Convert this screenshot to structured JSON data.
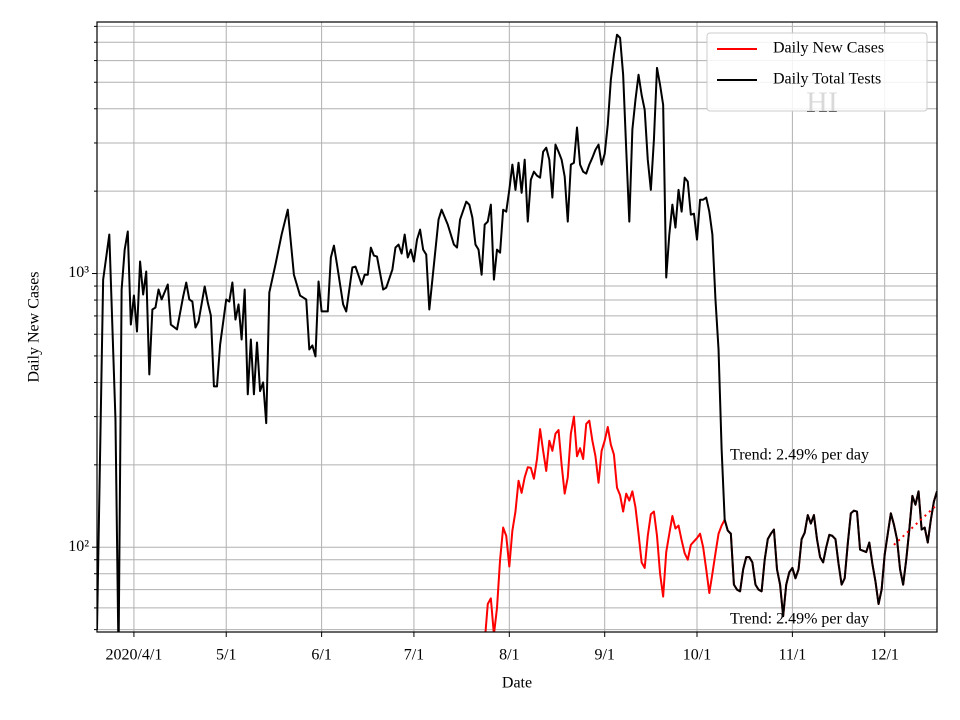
{
  "chart_data": {
    "type": "line",
    "ylabel": "Daily New Cases",
    "xlabel": "Date",
    "annotation": "HI",
    "trend_labels": [
      "Trend: 2.49% per day",
      "Trend: 2.49% per day"
    ],
    "log_y": true,
    "grid": true,
    "legend": "upper right",
    "xlim": [
      "2020-03-20",
      "2020-12-18"
    ],
    "xticks": [
      {
        "value": "2020-04-01",
        "label": "2020/4/1"
      },
      {
        "value": "2020-05-01",
        "label": "5/1"
      },
      {
        "value": "2020-06-01",
        "label": "6/1"
      },
      {
        "value": "2020-07-01",
        "label": "7/1"
      },
      {
        "value": "2020-08-01",
        "label": "8/1"
      },
      {
        "value": "2020-09-01",
        "label": "9/1"
      },
      {
        "value": "2020-10-01",
        "label": "10/1"
      },
      {
        "value": "2020-11-01",
        "label": "11/1"
      },
      {
        "value": "2020-12-01",
        "label": "12/1"
      }
    ],
    "ylim": [
      49,
      8300
    ],
    "yticks": [
      {
        "value": 100,
        "label": "10²"
      },
      {
        "value": 1000,
        "label": "10³"
      }
    ],
    "yminorticks": [
      50,
      60,
      70,
      80,
      90,
      200,
      300,
      400,
      500,
      600,
      700,
      800,
      900,
      2000,
      3000,
      4000,
      5000,
      6000,
      7000,
      8000
    ],
    "series": [
      {
        "name": "Daily New Cases",
        "color": "#ff0000",
        "x": [
          "2020-07-24",
          "2020-07-25",
          "2020-07-26",
          "2020-07-27",
          "2020-07-28",
          "2020-07-29",
          "2020-07-30",
          "2020-07-31",
          "2020-08-01",
          "2020-08-02",
          "2020-08-03",
          "2020-08-04",
          "2020-08-05",
          "2020-08-06",
          "2020-08-07",
          "2020-08-08",
          "2020-08-09",
          "2020-08-10",
          "2020-08-11",
          "2020-08-12",
          "2020-08-13",
          "2020-08-14",
          "2020-08-15",
          "2020-08-16",
          "2020-08-17",
          "2020-08-18",
          "2020-08-19",
          "2020-08-20",
          "2020-08-21",
          "2020-08-22",
          "2020-08-23",
          "2020-08-24",
          "2020-08-25",
          "2020-08-26",
          "2020-08-27",
          "2020-08-28",
          "2020-08-29",
          "2020-08-30",
          "2020-08-31",
          "2020-09-01",
          "2020-09-02",
          "2020-09-03",
          "2020-09-04",
          "2020-09-05",
          "2020-09-06",
          "2020-09-07",
          "2020-09-08",
          "2020-09-09",
          "2020-09-10",
          "2020-09-11",
          "2020-09-12",
          "2020-09-13",
          "2020-09-14",
          "2020-09-15",
          "2020-09-16",
          "2020-09-17",
          "2020-09-18",
          "2020-09-19",
          "2020-09-20",
          "2020-09-21",
          "2020-09-22",
          "2020-09-23",
          "2020-09-24",
          "2020-09-25",
          "2020-09-26",
          "2020-09-27",
          "2020-09-28",
          "2020-09-29",
          "2020-09-30",
          "2020-10-01",
          "2020-10-02",
          "2020-10-03",
          "2020-10-04",
          "2020-10-05",
          "2020-10-06",
          "2020-10-07",
          "2020-10-08",
          "2020-10-09",
          "2020-10-10",
          "2020-10-11",
          "2020-10-12",
          "2020-10-13",
          "2020-10-14",
          "2020-10-15",
          "2020-10-16",
          "2020-10-17",
          "2020-10-18",
          "2020-10-19",
          "2020-10-20",
          "2020-10-21",
          "2020-10-22",
          "2020-10-23",
          "2020-10-24",
          "2020-10-25",
          "2020-10-26",
          "2020-10-27",
          "2020-10-28",
          "2020-10-29",
          "2020-10-30",
          "2020-10-31",
          "2020-11-01",
          "2020-11-02",
          "2020-11-03",
          "2020-11-04",
          "2020-11-05",
          "2020-11-06",
          "2020-11-07",
          "2020-11-08",
          "2020-11-09",
          "2020-11-10",
          "2020-11-11",
          "2020-11-12",
          "2020-11-13",
          "2020-11-14",
          "2020-11-15",
          "2020-11-16",
          "2020-11-17",
          "2020-11-18",
          "2020-11-19",
          "2020-11-20",
          "2020-11-21",
          "2020-11-22",
          "2020-11-23",
          "2020-11-24",
          "2020-11-25",
          "2020-11-26",
          "2020-11-27",
          "2020-11-28",
          "2020-11-29",
          "2020-11-30",
          "2020-12-01",
          "2020-12-02",
          "2020-12-03",
          "2020-12-04",
          "2020-12-05",
          "2020-12-06",
          "2020-12-07",
          "2020-12-08",
          "2020-12-09",
          "2020-12-10",
          "2020-12-11",
          "2020-12-12",
          "2020-12-13",
          "2020-12-14",
          "2020-12-15",
          "2020-12-16",
          "2020-12-17",
          "2020-12-18"
        ],
        "values": [
          45,
          62,
          65,
          48,
          60,
          90,
          118,
          110,
          85,
          115,
          135,
          175,
          158,
          180,
          196,
          195,
          178,
          210,
          270,
          225,
          190,
          245,
          225,
          260,
          268,
          200,
          157,
          180,
          260,
          300,
          215,
          230,
          210,
          282,
          290,
          245,
          215,
          172,
          225,
          245,
          275,
          237,
          218,
          165,
          155,
          135,
          157,
          148,
          160,
          140,
          112,
          88,
          84,
          110,
          132,
          135,
          110,
          80,
          66,
          96,
          112,
          130,
          117,
          120,
          106,
          95,
          90,
          102,
          105,
          108,
          112,
          100,
          83,
          68,
          80,
          95,
          112,
          120,
          126,
          115,
          112,
          73,
          70,
          69,
          83,
          92,
          92,
          88,
          73,
          70,
          69,
          90,
          107,
          112,
          116,
          83,
          73,
          56,
          73,
          81,
          84,
          77,
          83,
          107,
          113,
          131,
          122,
          131,
          107,
          92,
          88,
          100,
          111,
          110,
          107,
          87,
          73,
          77,
          103,
          133,
          136,
          135,
          98,
          97,
          96,
          104,
          87,
          75,
          62,
          70,
          94,
          112,
          133,
          121,
          107,
          83,
          73,
          90,
          116,
          154,
          143,
          160,
          116,
          118,
          104,
          126,
          147,
          160
        ]
      },
      {
        "name": "Daily Total Tests",
        "color": "#000000",
        "x": [
          "2020-03-20",
          "2020-03-22",
          "2020-03-24",
          "2020-03-26",
          "2020-03-27",
          "2020-03-28",
          "2020-03-29",
          "2020-03-30",
          "2020-03-31",
          "2020-04-01",
          "2020-04-02",
          "2020-04-03",
          "2020-04-04",
          "2020-04-05",
          "2020-04-06",
          "2020-04-07",
          "2020-04-08",
          "2020-04-09",
          "2020-04-10",
          "2020-04-12",
          "2020-04-13",
          "2020-04-15",
          "2020-04-17",
          "2020-04-18",
          "2020-04-19",
          "2020-04-20",
          "2020-04-21",
          "2020-04-22",
          "2020-04-24",
          "2020-04-25",
          "2020-04-26",
          "2020-04-27",
          "2020-04-28",
          "2020-04-29",
          "2020-05-01",
          "2020-05-02",
          "2020-05-03",
          "2020-05-04",
          "2020-05-05",
          "2020-05-06",
          "2020-05-07",
          "2020-05-08",
          "2020-05-09",
          "2020-05-10",
          "2020-05-11",
          "2020-05-12",
          "2020-05-13",
          "2020-05-14",
          "2020-05-15",
          "2020-05-17",
          "2020-05-19",
          "2020-05-21",
          "2020-05-23",
          "2020-05-25",
          "2020-05-27",
          "2020-05-28",
          "2020-05-29",
          "2020-05-30",
          "2020-05-31",
          "2020-06-01",
          "2020-06-03",
          "2020-06-04",
          "2020-06-05",
          "2020-06-06",
          "2020-06-08",
          "2020-06-09",
          "2020-06-11",
          "2020-06-12",
          "2020-06-14",
          "2020-06-15",
          "2020-06-16",
          "2020-06-17",
          "2020-06-18",
          "2020-06-19",
          "2020-06-21",
          "2020-06-22",
          "2020-06-24",
          "2020-06-25",
          "2020-06-26",
          "2020-06-27",
          "2020-06-28",
          "2020-06-29",
          "2020-06-30",
          "2020-07-01",
          "2020-07-02",
          "2020-07-03",
          "2020-07-04",
          "2020-07-05",
          "2020-07-06",
          "2020-07-07",
          "2020-07-09",
          "2020-07-10",
          "2020-07-12",
          "2020-07-14",
          "2020-07-15",
          "2020-07-16",
          "2020-07-18",
          "2020-07-19",
          "2020-07-20",
          "2020-07-21",
          "2020-07-22",
          "2020-07-23",
          "2020-07-24",
          "2020-07-25",
          "2020-07-26",
          "2020-07-27",
          "2020-07-28",
          "2020-07-29",
          "2020-07-30",
          "2020-07-31",
          "2020-08-01",
          "2020-08-02",
          "2020-08-03",
          "2020-08-04",
          "2020-08-05",
          "2020-08-06",
          "2020-08-07",
          "2020-08-08",
          "2020-08-09",
          "2020-08-10",
          "2020-08-11",
          "2020-08-12",
          "2020-08-13",
          "2020-08-14",
          "2020-08-15",
          "2020-08-16",
          "2020-08-17",
          "2020-08-18",
          "2020-08-19",
          "2020-08-20",
          "2020-08-21",
          "2020-08-22",
          "2020-08-23",
          "2020-08-24",
          "2020-08-25",
          "2020-08-26",
          "2020-08-27",
          "2020-08-28",
          "2020-08-29",
          "2020-08-30",
          "2020-08-31",
          "2020-09-01",
          "2020-09-02",
          "2020-09-03",
          "2020-09-04",
          "2020-09-05",
          "2020-09-06",
          "2020-09-07",
          "2020-09-08",
          "2020-09-09",
          "2020-09-10",
          "2020-09-11",
          "2020-09-12",
          "2020-09-13",
          "2020-09-14",
          "2020-09-15",
          "2020-09-16",
          "2020-09-17",
          "2020-09-18",
          "2020-09-19",
          "2020-09-20",
          "2020-09-21",
          "2020-09-22",
          "2020-09-23",
          "2020-09-24",
          "2020-09-25",
          "2020-09-26",
          "2020-09-27",
          "2020-09-28",
          "2020-09-29",
          "2020-09-30",
          "2020-10-01",
          "2020-10-02",
          "2020-10-03",
          "2020-10-04",
          "2020-10-05",
          "2020-10-06",
          "2020-10-07",
          "2020-10-08",
          "2020-10-09",
          "2020-10-10",
          "2020-10-11",
          "2020-10-12",
          "2020-10-13",
          "2020-10-14",
          "2020-10-15",
          "2020-10-16",
          "2020-10-17",
          "2020-10-18",
          "2020-10-19",
          "2020-10-20",
          "2020-10-21",
          "2020-10-22",
          "2020-10-23",
          "2020-10-24",
          "2020-10-25",
          "2020-10-26",
          "2020-10-27",
          "2020-10-28",
          "2020-10-29",
          "2020-10-30",
          "2020-10-31",
          "2020-11-01",
          "2020-11-02",
          "2020-11-03",
          "2020-11-04",
          "2020-11-05",
          "2020-11-06",
          "2020-11-07",
          "2020-11-08",
          "2020-11-09",
          "2020-11-10",
          "2020-11-11",
          "2020-11-12",
          "2020-11-13",
          "2020-11-14",
          "2020-11-15",
          "2020-11-16",
          "2020-11-17",
          "2020-11-18",
          "2020-11-19",
          "2020-11-20",
          "2020-11-21",
          "2020-11-22",
          "2020-11-23",
          "2020-11-24",
          "2020-11-25",
          "2020-11-26",
          "2020-11-27",
          "2020-11-28",
          "2020-11-29",
          "2020-11-30",
          "2020-12-01",
          "2020-12-02",
          "2020-12-03",
          "2020-12-04",
          "2020-12-05",
          "2020-12-06",
          "2020-12-07",
          "2020-12-08",
          "2020-12-09",
          "2020-12-10",
          "2020-12-11",
          "2020-12-12",
          "2020-12-13",
          "2020-12-14",
          "2020-12-15",
          "2020-12-16",
          "2020-12-17",
          "2020-12-18"
        ],
        "values": [
          50,
          950,
          1388,
          293,
          40,
          874,
          1223,
          1424,
          651,
          831,
          614,
          1106,
          838,
          1017,
          428,
          739,
          751,
          874,
          804,
          912,
          651,
          625,
          824,
          927,
          804,
          790,
          635,
          668,
          897,
          784,
          703,
          387,
          387,
          548,
          804,
          790,
          927,
          679,
          771,
          574,
          874,
          362,
          574,
          362,
          560,
          372,
          400,
          284,
          852,
          1079,
          1388,
          1711,
          990,
          831,
          804,
          528,
          546,
          498,
          935,
          727,
          727,
          1144,
          1265,
          1079,
          771,
          727,
          1052,
          1060,
          912,
          990,
          990,
          1244,
          1163,
          1153,
          874,
          888,
          1034,
          1244,
          1276,
          1183,
          1388,
          1144,
          1223,
          1106,
          1330,
          1447,
          1223,
          1173,
          739,
          950,
          1575,
          1711,
          1509,
          1276,
          1244,
          1575,
          1831,
          1785,
          1601,
          1276,
          1223,
          990,
          1509,
          1548,
          1785,
          950,
          1223,
          1192,
          1711,
          1683,
          2022,
          2500,
          2022,
          2540,
          1972,
          2606,
          1548,
          2201,
          2356,
          2279,
          2240,
          2786,
          2883,
          2606,
          1895,
          2958,
          2786,
          2606,
          2260,
          1548,
          2500,
          2540,
          3415,
          2500,
          2356,
          2318,
          2500,
          2650,
          2834,
          2958,
          2500,
          2736,
          3500,
          5108,
          6300,
          7459,
          7262,
          5324,
          2834,
          1548,
          3360,
          4315,
          5324,
          4496,
          3965,
          2606,
          2022,
          3085,
          5643,
          4890,
          4134,
          967,
          1388,
          1785,
          1472,
          2022,
          1683,
          2240,
          2166,
          1641,
          1655,
          1330,
          1861,
          1861,
          1895,
          1683,
          1388,
          804,
          528,
          228,
          126,
          115,
          112,
          73,
          70,
          69,
          83,
          92,
          92,
          88,
          73,
          70,
          69,
          90,
          107,
          112,
          116,
          83,
          73,
          56,
          73,
          81,
          84,
          77,
          83,
          107,
          113,
          131,
          122,
          131,
          107,
          92,
          88,
          100,
          111,
          110,
          107,
          87,
          73,
          77,
          103,
          133,
          136,
          135,
          98,
          97,
          96,
          104,
          87,
          75,
          62,
          70,
          94,
          112,
          133,
          121,
          107,
          83,
          73,
          90,
          116,
          154,
          143,
          160,
          116,
          118,
          104,
          126,
          147,
          160
        ]
      }
    ],
    "trend_line": {
      "x": [
        "2020-12-04",
        "2020-12-18"
      ],
      "values": [
        102,
        143
      ],
      "color": "#ff0000"
    }
  }
}
